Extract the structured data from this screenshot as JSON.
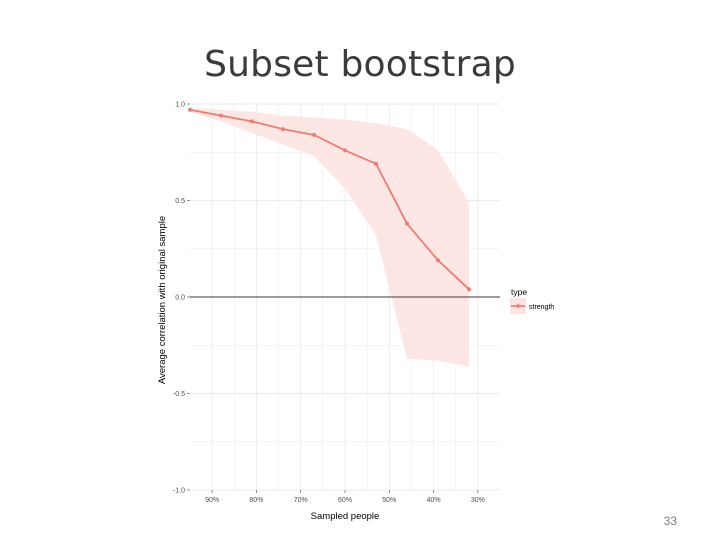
{
  "slide": {
    "title": "Subset bootstrap",
    "page_number": "33"
  },
  "colors": {
    "series": "#ef7b72",
    "band": "#fde3e1",
    "panel_background": "#ffffff",
    "grid": "#ebebeb",
    "zero_line": "#000000"
  },
  "chart_data": {
    "type": "line",
    "xlabel": "Sampled people",
    "ylabel": "Average correlation with original sample",
    "x_reversed": true,
    "xlim": [
      25,
      95
    ],
    "ylim": [
      -1.0,
      1.0
    ],
    "grid": true,
    "x_ticks": [
      {
        "value": 90,
        "label": "90%"
      },
      {
        "value": 80,
        "label": "80%"
      },
      {
        "value": 70,
        "label": "70%"
      },
      {
        "value": 60,
        "label": "60%"
      },
      {
        "value": 50,
        "label": "50%"
      },
      {
        "value": 40,
        "label": "40%"
      },
      {
        "value": 30,
        "label": "30%"
      }
    ],
    "y_ticks": [
      {
        "value": 1.0,
        "label": "1.0"
      },
      {
        "value": 0.5,
        "label": "0.5"
      },
      {
        "value": 0.0,
        "label": "0.0"
      },
      {
        "value": -0.5,
        "label": "-0.5"
      },
      {
        "value": -1.0,
        "label": "-1.0"
      }
    ],
    "reference_line": {
      "y": 0.0
    },
    "legend": {
      "title": "type",
      "position": "right"
    },
    "series": [
      {
        "name": "strength",
        "x": [
          95,
          88,
          81,
          74,
          67,
          60,
          53,
          46,
          39,
          32
        ],
        "y": [
          0.97,
          0.94,
          0.91,
          0.87,
          0.84,
          0.76,
          0.69,
          0.38,
          0.19,
          0.04
        ],
        "band_lower": [
          0.96,
          0.91,
          0.85,
          0.79,
          0.73,
          0.56,
          0.32,
          -0.32,
          -0.33,
          -0.36
        ],
        "band_upper": [
          0.98,
          0.97,
          0.96,
          0.94,
          0.93,
          0.92,
          0.9,
          0.87,
          0.76,
          0.49
        ]
      }
    ]
  }
}
